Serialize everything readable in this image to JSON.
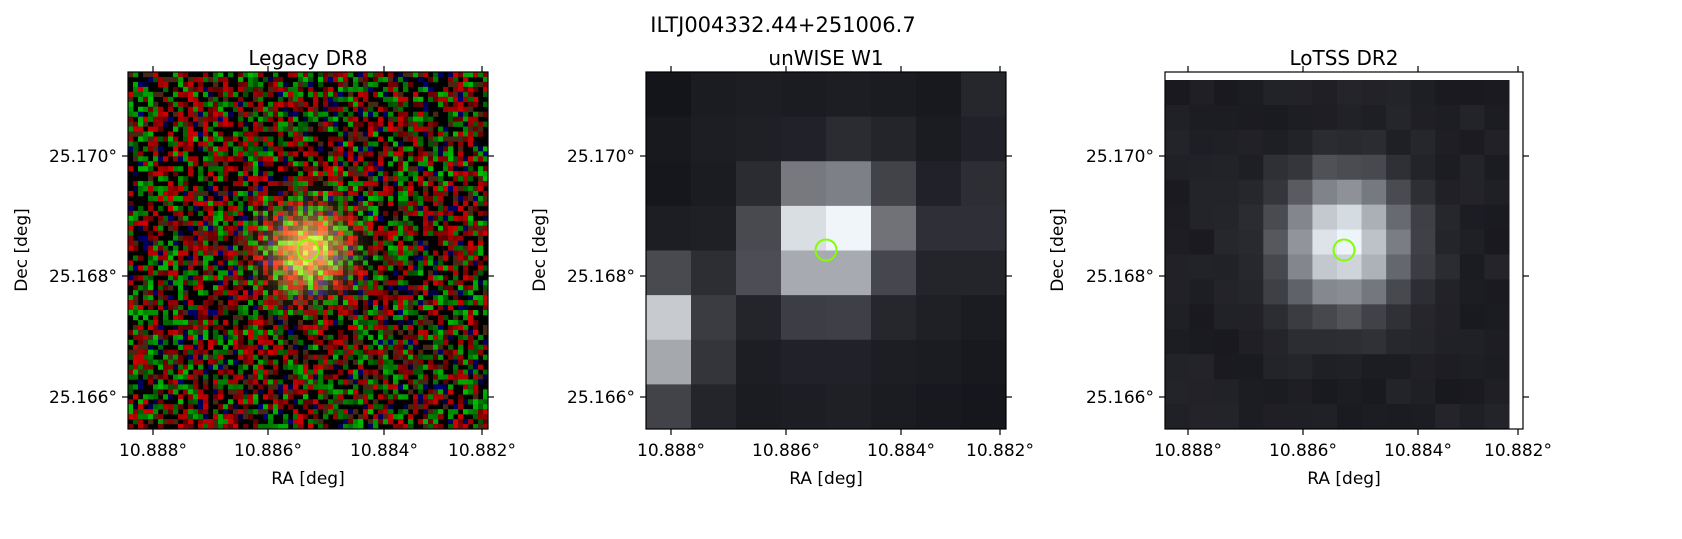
{
  "figure": {
    "suptitle": "ILTJ004332.44+251006.7"
  },
  "panels": [
    {
      "title": "Legacy DR8",
      "xlabel": "RA [deg]",
      "ylabel": "Dec [deg]",
      "xticks": [
        "10.888°",
        "10.886°",
        "10.884°",
        "10.882°"
      ],
      "yticks": [
        "25.170°",
        "25.168°",
        "25.166°"
      ],
      "image_kind": "rgb-noise"
    },
    {
      "title": "unWISE W1",
      "xlabel": "RA [deg]",
      "ylabel": "Dec [deg]",
      "xticks": [
        "10.888°",
        "10.886°",
        "10.884°",
        "10.882°"
      ],
      "yticks": [
        "25.170°",
        "25.168°",
        "25.166°"
      ],
      "image_kind": "gray-coarse"
    },
    {
      "title": "LoTSS DR2",
      "xlabel": "RA [deg]",
      "ylabel": "Dec [deg]",
      "xticks": [
        "10.888°",
        "10.886°",
        "10.884°",
        "10.882°"
      ],
      "yticks": [
        "25.170°",
        "25.168°",
        "25.166°"
      ],
      "image_kind": "gray-smooth"
    }
  ],
  "colors": {
    "marker_circle": "#7fff00",
    "axes": "#000000",
    "background": "#ffffff"
  }
}
